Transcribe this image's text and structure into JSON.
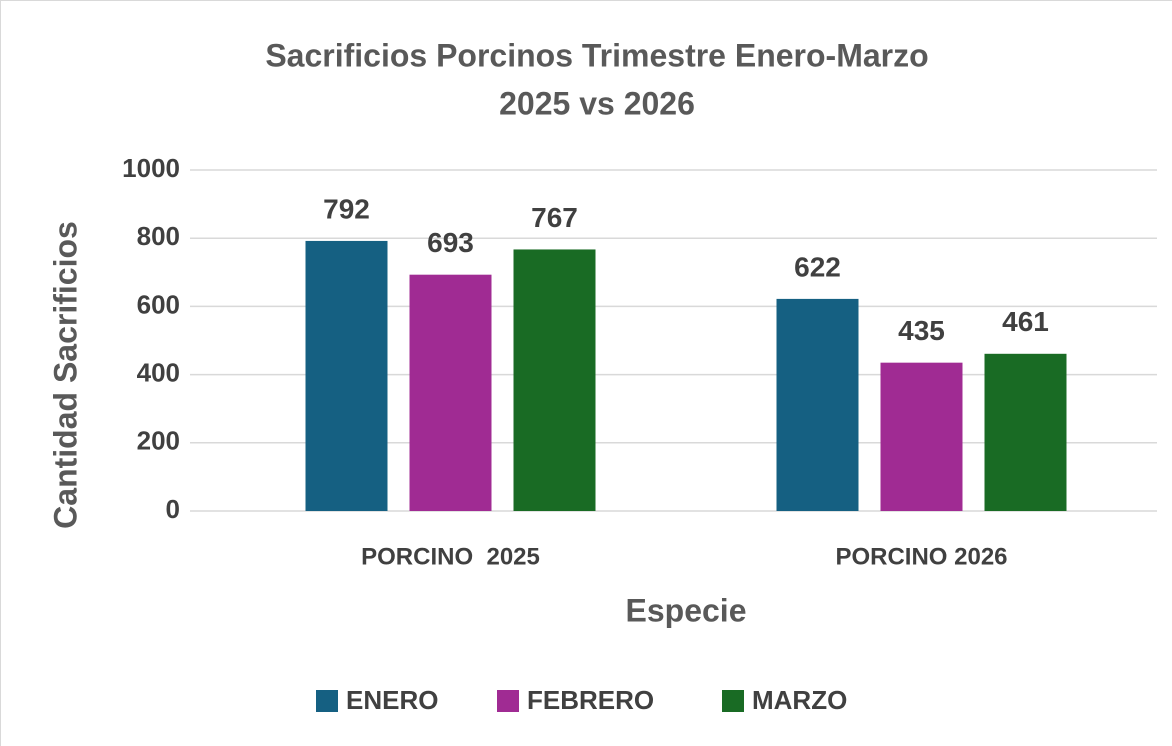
{
  "chart_data": {
    "type": "bar",
    "title": [
      "Sacrificios Porcinos Trimestre Enero-Marzo",
      "2025 vs 2026"
    ],
    "x_label": "Especie",
    "y_label": "Cantidad Sacrificios",
    "categories": [
      "PORCINO  2025",
      "PORCINO 2026"
    ],
    "series": [
      {
        "name": "ENERO",
        "color": "#156082",
        "values": [
          792,
          622
        ]
      },
      {
        "name": "FEBRERO",
        "color": "#a02b93",
        "values": [
          693,
          435
        ]
      },
      {
        "name": "MARZO",
        "color": "#196b24",
        "values": [
          767,
          461
        ]
      }
    ],
    "ylim": [
      0,
      1000
    ],
    "yticks": [
      0,
      200,
      400,
      600,
      800,
      1000
    ],
    "grid": true,
    "legend": "bottom"
  }
}
